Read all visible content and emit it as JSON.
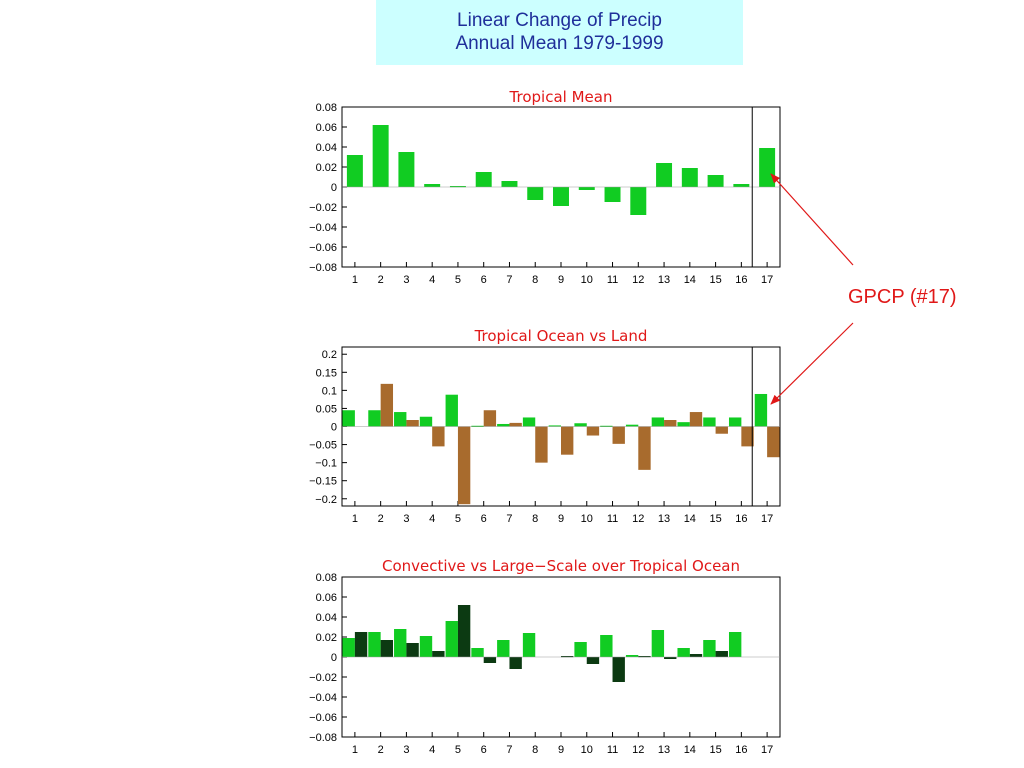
{
  "header": {
    "line1": "Linear Change of Precip",
    "line2": "Annual Mean 1979-1999"
  },
  "annotation": {
    "label": "GPCP (#17)",
    "color": "#e01818"
  },
  "colors": {
    "green": "#11cc22",
    "brown": "#a86b2d",
    "dark_green": "#0c3a12",
    "title_red": "#e01818"
  },
  "chart_data": [
    {
      "type": "bar",
      "title": "Tropical Mean",
      "categories": [
        "1",
        "2",
        "3",
        "4",
        "5",
        "6",
        "7",
        "8",
        "9",
        "10",
        "11",
        "12",
        "13",
        "14",
        "15",
        "16",
        "17"
      ],
      "ylim": [
        -0.08,
        0.08
      ],
      "yticks": [
        "0.08",
        "0.06",
        "0.04",
        "0.02",
        "0",
        "−0.02",
        "−0.04",
        "−0.06",
        "−0.08"
      ],
      "series": [
        {
          "color": "#11cc22",
          "values": [
            0.032,
            0.062,
            0.035,
            0.003,
            0.001,
            0.015,
            0.006,
            -0.013,
            -0.019,
            -0.003,
            -0.015,
            -0.028,
            0.024,
            0.019,
            0.012,
            0.003,
            0.039
          ]
        }
      ],
      "divider_after": 16,
      "grid": false
    },
    {
      "type": "bar",
      "title": "Tropical Ocean vs Land",
      "categories": [
        "1",
        "2",
        "3",
        "4",
        "5",
        "6",
        "7",
        "8",
        "9",
        "10",
        "11",
        "12",
        "13",
        "14",
        "15",
        "16",
        "17"
      ],
      "ylim": [
        -0.22,
        0.22
      ],
      "yticks": [
        "0.2",
        "0.15",
        "0.1",
        "0.05",
        "0",
        "−0.05",
        "−0.1",
        "−0.15",
        "−0.2"
      ],
      "series": [
        {
          "color": "#11cc22",
          "values": [
            0.045,
            0.045,
            0.04,
            0.027,
            0.088,
            0.002,
            0.007,
            0.025,
            0.003,
            0.009,
            0.002,
            0.005,
            0.025,
            0.012,
            0.025,
            0.025,
            0.09
          ]
        },
        {
          "color": "#a86b2d",
          "values": [
            0.0,
            0.118,
            0.018,
            -0.055,
            -0.215,
            0.045,
            0.01,
            -0.1,
            -0.078,
            -0.025,
            -0.048,
            -0.12,
            0.018,
            0.04,
            -0.02,
            -0.055,
            -0.085
          ]
        }
      ],
      "divider_after": 16,
      "grid": false
    },
    {
      "type": "bar",
      "title": "Convective vs Large−Scale over Tropical Ocean",
      "categories": [
        "1",
        "2",
        "3",
        "4",
        "5",
        "6",
        "7",
        "8",
        "9",
        "10",
        "11",
        "12",
        "13",
        "14",
        "15",
        "16",
        "17"
      ],
      "ylim": [
        -0.08,
        0.08
      ],
      "yticks": [
        "0.08",
        "0.06",
        "0.04",
        "0.02",
        "0",
        "−0.02",
        "−0.04",
        "−0.06",
        "−0.08"
      ],
      "series": [
        {
          "color": "#11cc22",
          "values": [
            0.019,
            0.025,
            0.028,
            0.021,
            0.036,
            0.009,
            0.017,
            0.024,
            0.0,
            0.015,
            0.022,
            0.002,
            0.027,
            0.009,
            0.017,
            0.025,
            0.0
          ]
        },
        {
          "color": "#0c3a12",
          "values": [
            0.025,
            0.017,
            0.014,
            0.006,
            0.052,
            -0.006,
            -0.012,
            0.0,
            0.001,
            -0.007,
            -0.025,
            0.001,
            -0.002,
            0.003,
            0.006,
            0.0,
            0.0
          ]
        }
      ],
      "grid": false
    }
  ]
}
